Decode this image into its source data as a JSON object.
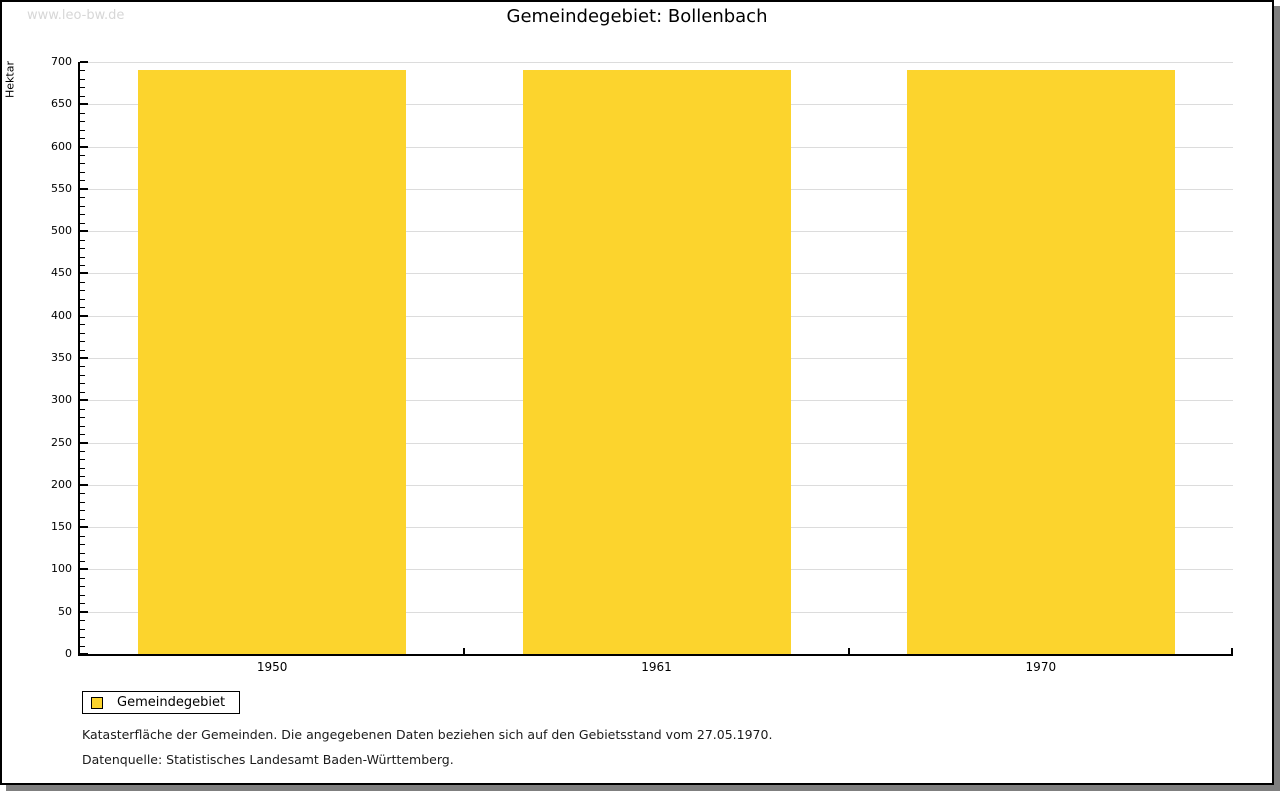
{
  "watermark": "www.leo-bw.de",
  "title": "Gemeindegebiet: Bollenbach",
  "chart_data": {
    "type": "bar",
    "title": "Gemeindegebiet: Bollenbach",
    "categories": [
      "1950",
      "1961",
      "1970"
    ],
    "series": [
      {
        "name": "Gemeindegebiet",
        "values": [
          690,
          690,
          690
        ]
      }
    ],
    "xlabel": "",
    "ylabel": "Hektar",
    "ylim": [
      0,
      700
    ],
    "y_major_step": 50,
    "y_minor_step": 10,
    "grid": "horizontal-major-only",
    "legend_position": "bottom-left",
    "bar_color": "#fcd42d"
  },
  "legend": {
    "items": [
      {
        "label": "Gemeindegebiet",
        "color": "#fcd42d"
      }
    ]
  },
  "footnotes": [
    "Katasterfläche der Gemeinden. Die angegebenen Daten beziehen sich auf den Gebietsstand vom 27.05.1970.",
    "Datenquelle: Statistisches Landesamt Baden-Württemberg."
  ],
  "colors": {
    "bar": "#fcd42d",
    "gridline": "#dcdcdc",
    "axis": "#000000",
    "frame_border": "#000000",
    "frame_shadow": "#7f7f7f",
    "watermark": "#d7d7d7",
    "text": "#000000"
  }
}
